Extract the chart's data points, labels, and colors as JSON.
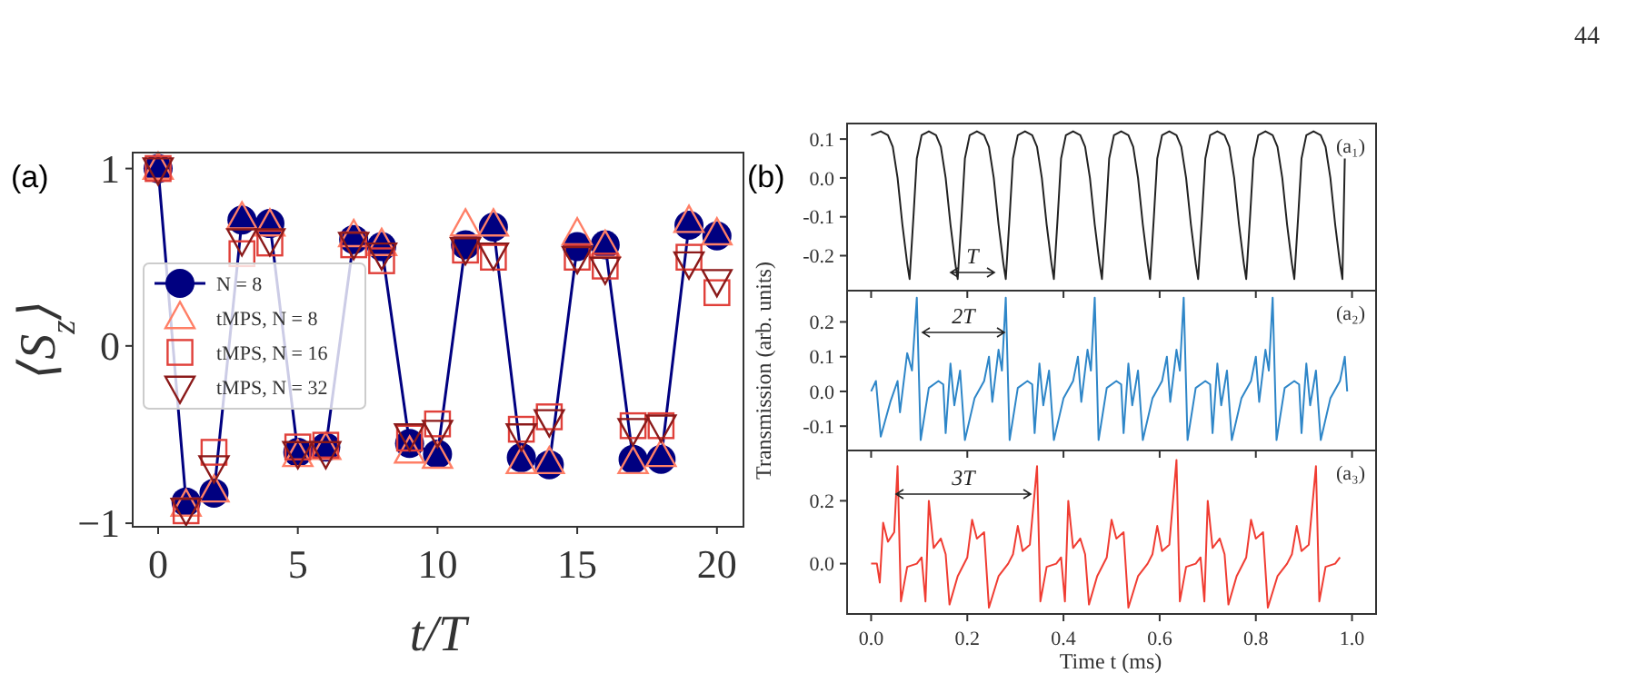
{
  "chart_data": [
    {
      "type": "scatter",
      "title": "(a)",
      "xlabel": "t/T",
      "ylabel": "⟨S$_{z}$⟩",
      "annotations": [
        "44"
      ],
      "legend": "center left",
      "x": [
        0,
        1,
        2,
        3,
        4,
        5,
        6,
        7,
        8,
        9,
        10,
        11,
        12,
        13,
        14,
        15,
        16,
        17,
        18,
        19,
        20
      ],
      "xlim": [
        -0.91,
        20.95
      ],
      "xticks": [
        0,
        5,
        10,
        15,
        20
      ],
      "ylim": [
        -1.02,
        1.09
      ],
      "yticks": [
        {
          "value": -1,
          "label": "−1"
        },
        0,
        1
      ],
      "series": [
        {
          "name": "N = 8",
          "type": "line",
          "marker": "circle",
          "color": "#000080",
          "values": [
            1.0,
            -0.88,
            -0.83,
            0.71,
            0.69,
            -0.6,
            -0.57,
            0.6,
            0.56,
            -0.55,
            -0.61,
            0.57,
            0.67,
            -0.63,
            -0.67,
            0.56,
            0.57,
            -0.64,
            -0.64,
            0.68,
            0.62
          ]
        },
        {
          "name": "tMPS, N = 8",
          "type": "scatter",
          "marker": "triangle",
          "color": "#ff7f66",
          "values": [
            1.0,
            -0.9,
            -0.82,
            0.72,
            0.68,
            -0.62,
            -0.58,
            0.62,
            0.57,
            -0.6,
            -0.63,
            0.68,
            0.68,
            -0.66,
            -0.66,
            0.63,
            0.56,
            -0.66,
            -0.62,
            0.7,
            0.63
          ]
        },
        {
          "name": "tMPS, N = 16",
          "type": "scatter",
          "marker": "square",
          "color": "#e0403a",
          "values": [
            1.0,
            -0.93,
            -0.6,
            0.52,
            0.58,
            -0.57,
            -0.56,
            0.57,
            0.48,
            -0.52,
            -0.44,
            0.54,
            0.5,
            -0.47,
            -0.4,
            0.5,
            0.45,
            -0.45,
            -0.45,
            0.5,
            0.3
          ]
        },
        {
          "name": "tMPS, N = 32",
          "type": "scatter",
          "marker": "triangle-down",
          "color": "#8b1a1a",
          "values": [
            1.0,
            -0.92,
            -0.68,
            0.6,
            0.6,
            -0.6,
            -0.6,
            0.58,
            0.52,
            -0.5,
            -0.48,
            0.55,
            0.52,
            -0.5,
            -0.42,
            0.5,
            0.44,
            -0.47,
            -0.45,
            0.47,
            0.37
          ]
        }
      ]
    },
    {
      "type": "line",
      "title": "(b)",
      "annotations": [
        "(a₁)",
        "T"
      ],
      "tick_labels": "y",
      "color": "#222222",
      "xlim": [
        -0.05,
        1.05
      ],
      "xticks": [
        {
          "value": 0,
          "label": null
        },
        {
          "value": 0.2,
          "label": null
        },
        {
          "value": 0.4,
          "label": null
        },
        {
          "value": 0.6,
          "label": null
        },
        {
          "value": 0.8,
          "label": null
        },
        {
          "value": 1,
          "label": null
        }
      ],
      "ylim": [
        -0.29,
        0.14
      ],
      "yticks": [
        {
          "value": -0.2,
          "label": "-0.2"
        },
        {
          "value": -0.1,
          "label": "-0.1"
        },
        {
          "value": 0,
          "label": "0.0"
        },
        0.1
      ],
      "x": [
        0.0,
        0.02,
        0.035,
        0.045,
        0.055,
        0.065,
        0.075,
        0.08,
        0.088,
        0.095,
        0.105,
        0.12,
        0.135,
        0.145,
        0.155,
        0.165,
        0.175,
        0.18,
        0.188,
        0.195,
        0.205,
        0.22,
        0.235,
        0.245,
        0.255,
        0.265,
        0.275,
        0.28,
        0.288,
        0.295,
        0.305,
        0.32,
        0.335,
        0.345,
        0.355,
        0.365,
        0.375,
        0.38,
        0.388,
        0.395,
        0.405,
        0.42,
        0.435,
        0.445,
        0.455,
        0.465,
        0.475,
        0.48,
        0.488,
        0.495,
        0.505,
        0.52,
        0.535,
        0.545,
        0.555,
        0.565,
        0.575,
        0.58,
        0.588,
        0.595,
        0.605,
        0.62,
        0.635,
        0.645,
        0.655,
        0.665,
        0.675,
        0.68,
        0.688,
        0.695,
        0.705,
        0.72,
        0.735,
        0.745,
        0.755,
        0.765,
        0.775,
        0.78,
        0.788,
        0.795,
        0.805,
        0.82,
        0.835,
        0.845,
        0.855,
        0.865,
        0.875,
        0.88,
        0.888,
        0.895,
        0.905,
        0.92,
        0.935,
        0.945,
        0.955,
        0.965,
        0.975,
        0.98,
        0.985
      ],
      "values": [
        0.11,
        0.12,
        0.11,
        0.08,
        0.0,
        -0.12,
        -0.22,
        -0.26,
        -0.1,
        0.05,
        0.11,
        0.12,
        0.11,
        0.08,
        0.0,
        -0.12,
        -0.22,
        -0.26,
        -0.1,
        0.05,
        0.11,
        0.12,
        0.11,
        0.08,
        0.0,
        -0.12,
        -0.22,
        -0.26,
        -0.1,
        0.05,
        0.11,
        0.12,
        0.11,
        0.08,
        0.0,
        -0.12,
        -0.22,
        -0.26,
        -0.1,
        0.05,
        0.11,
        0.12,
        0.11,
        0.08,
        0.0,
        -0.12,
        -0.22,
        -0.26,
        -0.1,
        0.05,
        0.11,
        0.12,
        0.11,
        0.08,
        0.0,
        -0.12,
        -0.22,
        -0.26,
        -0.1,
        0.05,
        0.11,
        0.12,
        0.11,
        0.08,
        0.0,
        -0.12,
        -0.22,
        -0.26,
        -0.1,
        0.05,
        0.11,
        0.12,
        0.11,
        0.08,
        0.0,
        -0.12,
        -0.22,
        -0.26,
        -0.1,
        0.05,
        0.11,
        0.12,
        0.11,
        0.08,
        0.0,
        -0.12,
        -0.22,
        -0.26,
        -0.1,
        0.05,
        0.11,
        0.12,
        0.11,
        0.08,
        0.0,
        -0.12,
        -0.22,
        -0.26,
        0.05
      ]
    },
    {
      "type": "line",
      "ylabel": "Transmission (arb. units)",
      "annotations": [
        "(a₂)",
        "2T"
      ],
      "tick_labels": "y",
      "color": "#2e86c8",
      "xlim": [
        -0.05,
        1.05
      ],
      "xticks": [
        {
          "value": 0,
          "label": null
        },
        {
          "value": 0.2,
          "label": null
        },
        {
          "value": 0.4,
          "label": null
        },
        {
          "value": 0.6,
          "label": null
        },
        {
          "value": 0.8,
          "label": null
        },
        {
          "value": 1,
          "label": null
        }
      ],
      "ylim": [
        -0.17,
        0.29
      ],
      "yticks": [
        {
          "value": -0.1,
          "label": "-0.1"
        },
        {
          "value": 0,
          "label": "0.0"
        },
        0.1,
        0.2
      ],
      "x": [
        0.0,
        0.01,
        0.02,
        0.04,
        0.055,
        0.06,
        0.075,
        0.085,
        0.095,
        0.103,
        0.12,
        0.14,
        0.15,
        0.155,
        0.165,
        0.173,
        0.185,
        0.195,
        0.215,
        0.235,
        0.245,
        0.252,
        0.265,
        0.272,
        0.28,
        0.288,
        0.305,
        0.325,
        0.335,
        0.34,
        0.35,
        0.358,
        0.37,
        0.38,
        0.4,
        0.42,
        0.43,
        0.437,
        0.45,
        0.457,
        0.465,
        0.473,
        0.49,
        0.51,
        0.52,
        0.525,
        0.535,
        0.543,
        0.555,
        0.565,
        0.585,
        0.605,
        0.615,
        0.622,
        0.635,
        0.642,
        0.65,
        0.658,
        0.675,
        0.695,
        0.705,
        0.71,
        0.72,
        0.728,
        0.74,
        0.75,
        0.77,
        0.79,
        0.8,
        0.807,
        0.82,
        0.827,
        0.835,
        0.843,
        0.86,
        0.88,
        0.89,
        0.895,
        0.905,
        0.913,
        0.925,
        0.935,
        0.955,
        0.975,
        0.985,
        0.99
      ],
      "values": [
        0.0,
        0.03,
        -0.13,
        -0.03,
        0.03,
        -0.06,
        0.11,
        0.06,
        0.27,
        -0.14,
        0.01,
        0.03,
        0.02,
        -0.12,
        0.08,
        -0.04,
        0.06,
        -0.14,
        -0.02,
        0.03,
        0.1,
        -0.03,
        0.12,
        0.06,
        0.27,
        -0.14,
        0.01,
        0.03,
        0.02,
        -0.12,
        0.08,
        -0.04,
        0.06,
        -0.14,
        -0.02,
        0.03,
        0.1,
        -0.03,
        0.12,
        0.06,
        0.27,
        -0.14,
        0.01,
        0.03,
        0.02,
        -0.12,
        0.08,
        -0.04,
        0.06,
        -0.14,
        -0.02,
        0.03,
        0.1,
        -0.03,
        0.12,
        0.06,
        0.27,
        -0.14,
        0.01,
        0.03,
        0.02,
        -0.12,
        0.08,
        -0.04,
        0.06,
        -0.14,
        -0.02,
        0.03,
        0.1,
        -0.03,
        0.12,
        0.06,
        0.27,
        -0.14,
        0.01,
        0.03,
        0.02,
        -0.12,
        0.08,
        -0.04,
        0.06,
        -0.14,
        -0.02,
        0.03,
        0.1,
        0.0
      ]
    },
    {
      "type": "line",
      "xlabel": "Time t (ms)",
      "annotations": [
        "(a₃)",
        "3T"
      ],
      "color": "#f03c32",
      "xlim": [
        -0.05,
        1.05
      ],
      "xticks": [
        {
          "value": 0,
          "label": "0.0"
        },
        0.2,
        0.4,
        0.6,
        0.8,
        {
          "value": 1,
          "label": "1.0"
        }
      ],
      "ylim": [
        -0.16,
        0.36
      ],
      "yticks": [
        {
          "value": 0,
          "label": "0.0"
        },
        0.2
      ],
      "x": [
        0.0,
        0.012,
        0.018,
        0.025,
        0.035,
        0.048,
        0.055,
        0.062,
        0.075,
        0.095,
        0.105,
        0.113,
        0.12,
        0.13,
        0.145,
        0.155,
        0.163,
        0.18,
        0.2,
        0.21,
        0.22,
        0.235,
        0.245,
        0.265,
        0.285,
        0.295,
        0.305,
        0.315,
        0.33,
        0.345,
        0.352,
        0.365,
        0.385,
        0.395,
        0.403,
        0.41,
        0.42,
        0.435,
        0.445,
        0.453,
        0.47,
        0.49,
        0.5,
        0.51,
        0.525,
        0.535,
        0.555,
        0.575,
        0.585,
        0.595,
        0.605,
        0.62,
        0.635,
        0.642,
        0.655,
        0.675,
        0.685,
        0.693,
        0.7,
        0.71,
        0.725,
        0.735,
        0.743,
        0.76,
        0.78,
        0.79,
        0.8,
        0.815,
        0.825,
        0.845,
        0.865,
        0.875,
        0.885,
        0.895,
        0.91,
        0.925,
        0.932,
        0.945,
        0.965,
        0.975
      ],
      "values": [
        0.0,
        0.0,
        -0.06,
        0.13,
        0.07,
        0.1,
        0.31,
        -0.12,
        -0.01,
        0.0,
        0.02,
        -0.12,
        0.2,
        0.05,
        0.08,
        0.03,
        -0.13,
        -0.04,
        0.02,
        0.14,
        0.08,
        0.1,
        -0.14,
        -0.04,
        0.0,
        0.03,
        0.12,
        0.04,
        0.06,
        0.31,
        -0.12,
        -0.01,
        0.0,
        0.02,
        -0.12,
        0.2,
        0.05,
        0.08,
        0.03,
        -0.13,
        -0.04,
        0.02,
        0.14,
        0.08,
        0.1,
        -0.14,
        -0.04,
        0.0,
        0.03,
        0.12,
        0.04,
        0.06,
        0.33,
        -0.12,
        -0.01,
        0.0,
        0.02,
        -0.12,
        0.2,
        0.05,
        0.08,
        0.03,
        -0.13,
        -0.04,
        0.02,
        0.14,
        0.08,
        0.1,
        -0.14,
        -0.04,
        0.0,
        0.03,
        0.12,
        0.04,
        0.06,
        0.31,
        -0.12,
        -0.01,
        0.0,
        0.02
      ]
    }
  ]
}
